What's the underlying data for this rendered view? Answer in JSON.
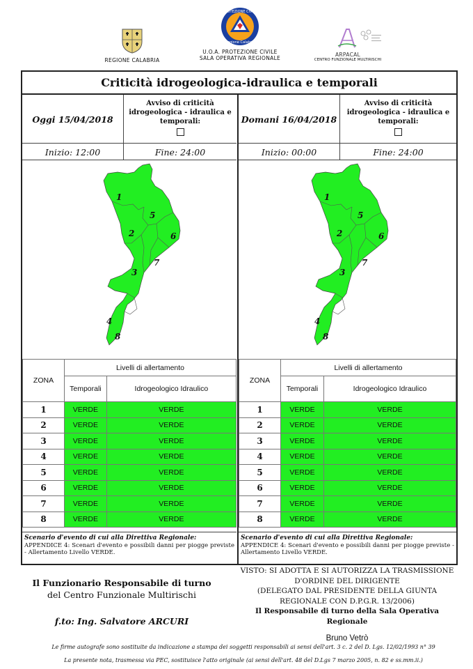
{
  "logos": {
    "calabria": "REGIONE CALABRIA",
    "protezione_line1": "U.O.A. PROTEZIONE CIVILE",
    "protezione_line2": "SALA OPERATIVA REGIONALE",
    "protezione_badge_top": "PROTEZIONE CIVILE",
    "protezione_badge_bottom": "Regione Calabria",
    "arpacal_name": "ARPACAL",
    "arpacal_sub": "CENTRO FUNZIONALE MULTIRISCHI"
  },
  "title": "Criticità idrogeologica-idraulica e temporali",
  "panels": [
    {
      "date": "Oggi 15/04/2018",
      "avviso": "Avviso di criticità idrogeologica - idraulica e temporali:",
      "start": "Inizio: 12:00",
      "end": "Fine: 24:00"
    },
    {
      "date": "Domani 16/04/2018",
      "avviso": "Avviso di criticità idrogeologica - idraulica e temporali:",
      "start": "Inizio: 00:00",
      "end": "Fine: 24:00"
    }
  ],
  "map": {
    "fill_color": "#22ee22",
    "zone_labels": [
      "1",
      "2",
      "3",
      "4",
      "5",
      "6",
      "7",
      "8"
    ]
  },
  "table": {
    "zona_header": "ZONA",
    "livelli_header": "Livelli di allertamento",
    "col_temporali": "Temporali",
    "col_idro": "Idrogeologico Idraulico",
    "level_color": "#22ee22",
    "rows": [
      {
        "zona": "1",
        "temporali": "VERDE",
        "idro": "VERDE"
      },
      {
        "zona": "2",
        "temporali": "VERDE",
        "idro": "VERDE"
      },
      {
        "zona": "3",
        "temporali": "VERDE",
        "idro": "VERDE"
      },
      {
        "zona": "4",
        "temporali": "VERDE",
        "idro": "VERDE"
      },
      {
        "zona": "5",
        "temporali": "VERDE",
        "idro": "VERDE"
      },
      {
        "zona": "6",
        "temporali": "VERDE",
        "idro": "VERDE"
      },
      {
        "zona": "7",
        "temporali": "VERDE",
        "idro": "VERDE"
      },
      {
        "zona": "8",
        "temporali": "VERDE",
        "idro": "VERDE"
      }
    ]
  },
  "scenario": {
    "title": "Scenario d'evento di cui alla Direttiva Regionale:",
    "body": "APPENDICE 4: Scenari d'evento e possibili danni per piogge previste - Allertamento Livello VERDE."
  },
  "footer": {
    "left_line1": "Il Funzionario Responsabile di turno",
    "left_line2": "del Centro Funzionale Multirischi",
    "left_signature": "f.to: Ing. Salvatore ARCURI",
    "right_line1": "VISTO: SI ADOTTA E SI AUTORIZZA LA TRASMISSIONE",
    "right_line2": "D'ORDINE DEL DIRIGENTE",
    "right_line3": "(DELEGATO DAL PRESIDENTE DELLA GIUNTA",
    "right_line4": "REGIONALE CON D.P.G.R. 13/2006)",
    "right_line5": "Il Responsabile di turno della Sala Operativa Regionale",
    "right_name": "Bruno Vetrò",
    "note1": "Le firme autografe sono sostituite da indicazione a stampa dei soggetti responsabili ai sensi dell'art. 3 c. 2 del D. Lgs. 12/02/1993 n° 39",
    "note2": "La presente nota, trasmessa via PEC, sostituisce l'atto originale (ai sensi dell'art. 48 del D.Lgs 7 marzo 2005, n. 82 e ss.mm.ii.)"
  }
}
